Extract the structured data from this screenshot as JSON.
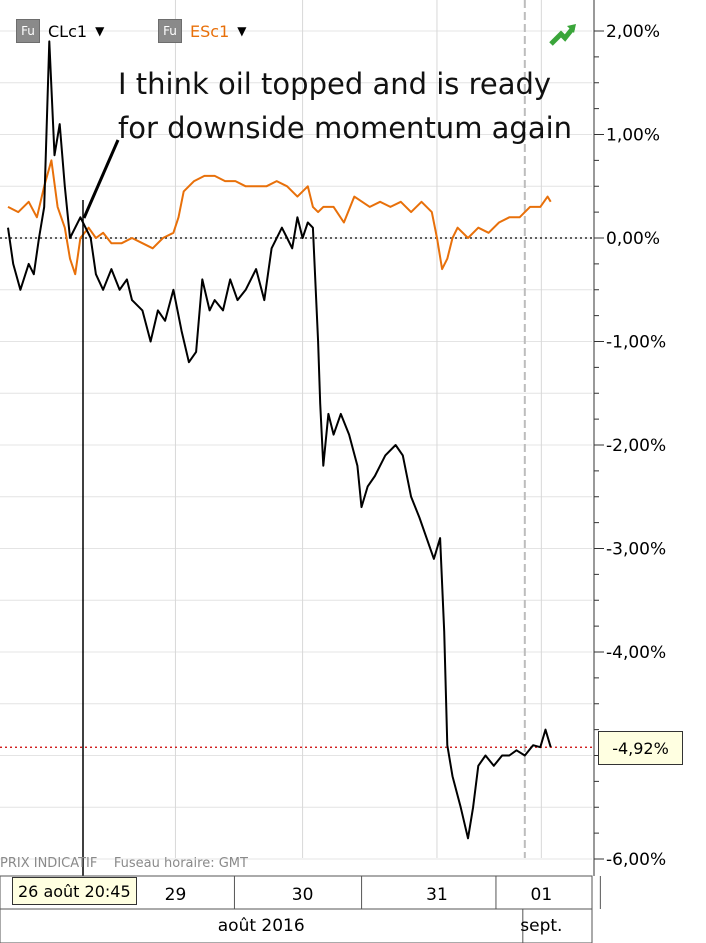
{
  "legend": [
    {
      "icon": "Fu",
      "label": "CLc1",
      "color": "#000000"
    },
    {
      "icon": "Fu",
      "label": "ESc1",
      "color": "#e8700a"
    }
  ],
  "annotation": "I think oil topped and is ready for downside momentum again",
  "footer": {
    "price_type": "PRIX INDICATIF",
    "timezone": "Fuseau horaire: GMT"
  },
  "cursor_label": "26 août 20:45",
  "last_value_label": "-4,92%",
  "colors": {
    "clc1": "#000000",
    "esc1": "#e8700a",
    "grid": "#d3d3d3",
    "zero_line": "#000000",
    "last_line": "#cc0000",
    "label_bg": "#ffffe1"
  },
  "chart_data": {
    "type": "line",
    "y_unit": "%",
    "ylim": [
      -6.2,
      2.3
    ],
    "y_ticks": [
      2,
      1,
      0,
      -1,
      -2,
      -3,
      -4,
      -6
    ],
    "y_tick_labels": [
      "2,00%",
      "1,00%",
      "0,00%",
      "-1,00%",
      "-2,00%",
      "-3,00%",
      "-4,00%",
      "-6,00%"
    ],
    "x_ticks": [
      {
        "t": 1.62,
        "label": "29"
      },
      {
        "t": 2.85,
        "label": "30"
      },
      {
        "t": 4.15,
        "label": "31"
      },
      {
        "t": 5.16,
        "label": "01"
      }
    ],
    "x_month_labels": [
      {
        "t": 2.45,
        "label": "août 2016"
      },
      {
        "t": 5.16,
        "label": "sept."
      }
    ],
    "xlim": [
      0,
      5.65
    ],
    "reference_lines": [
      {
        "y": 0,
        "style": "dotted"
      },
      {
        "y": -4.92,
        "style": "dotted-red"
      }
    ],
    "grid": true,
    "series": [
      {
        "name": "CLc1",
        "points": [
          [
            0,
            0.1
          ],
          [
            0.05,
            -0.25
          ],
          [
            0.12,
            -0.5
          ],
          [
            0.2,
            -0.25
          ],
          [
            0.25,
            -0.35
          ],
          [
            0.3,
            0.0
          ],
          [
            0.35,
            0.3
          ],
          [
            0.4,
            1.9
          ],
          [
            0.45,
            0.8
          ],
          [
            0.5,
            1.1
          ],
          [
            0.55,
            0.5
          ],
          [
            0.6,
            0.0
          ],
          [
            0.7,
            0.2
          ],
          [
            0.8,
            0.0
          ],
          [
            0.85,
            -0.35
          ],
          [
            0.92,
            -0.5
          ],
          [
            1.0,
            -0.3
          ],
          [
            1.08,
            -0.5
          ],
          [
            1.15,
            -0.4
          ],
          [
            1.2,
            -0.6
          ],
          [
            1.3,
            -0.7
          ],
          [
            1.38,
            -1.0
          ],
          [
            1.45,
            -0.7
          ],
          [
            1.52,
            -0.8
          ],
          [
            1.6,
            -0.5
          ],
          [
            1.68,
            -0.9
          ],
          [
            1.75,
            -1.2
          ],
          [
            1.82,
            -1.1
          ],
          [
            1.88,
            -0.4
          ],
          [
            1.95,
            -0.7
          ],
          [
            2.0,
            -0.6
          ],
          [
            2.08,
            -0.7
          ],
          [
            2.15,
            -0.4
          ],
          [
            2.22,
            -0.6
          ],
          [
            2.3,
            -0.5
          ],
          [
            2.4,
            -0.3
          ],
          [
            2.48,
            -0.6
          ],
          [
            2.55,
            -0.1
          ],
          [
            2.65,
            0.1
          ],
          [
            2.7,
            0.0
          ],
          [
            2.75,
            -0.1
          ],
          [
            2.8,
            0.2
          ],
          [
            2.85,
            0.0
          ],
          [
            2.9,
            0.15
          ],
          [
            2.95,
            0.1
          ],
          [
            3.0,
            -1.0
          ],
          [
            3.02,
            -1.6
          ],
          [
            3.05,
            -2.2
          ],
          [
            3.1,
            -1.7
          ],
          [
            3.15,
            -1.9
          ],
          [
            3.22,
            -1.7
          ],
          [
            3.3,
            -1.9
          ],
          [
            3.38,
            -2.2
          ],
          [
            3.42,
            -2.6
          ],
          [
            3.48,
            -2.4
          ],
          [
            3.55,
            -2.3
          ],
          [
            3.65,
            -2.1
          ],
          [
            3.75,
            -2.0
          ],
          [
            3.82,
            -2.1
          ],
          [
            3.9,
            -2.5
          ],
          [
            3.98,
            -2.7
          ],
          [
            4.05,
            -2.9
          ],
          [
            4.12,
            -3.1
          ],
          [
            4.18,
            -2.9
          ],
          [
            4.22,
            -3.8
          ],
          [
            4.25,
            -4.9
          ],
          [
            4.3,
            -5.2
          ],
          [
            4.38,
            -5.5
          ],
          [
            4.45,
            -5.8
          ],
          [
            4.5,
            -5.5
          ],
          [
            4.55,
            -5.1
          ],
          [
            4.62,
            -5.0
          ],
          [
            4.7,
            -5.1
          ],
          [
            4.78,
            -5.0
          ],
          [
            4.85,
            -5.0
          ],
          [
            4.92,
            -4.95
          ],
          [
            5.0,
            -5.0
          ],
          [
            5.08,
            -4.9
          ],
          [
            5.15,
            -4.92
          ],
          [
            5.2,
            -4.75
          ],
          [
            5.25,
            -4.92
          ]
        ]
      },
      {
        "name": "ESc1",
        "points": [
          [
            0,
            0.3
          ],
          [
            0.1,
            0.25
          ],
          [
            0.2,
            0.35
          ],
          [
            0.28,
            0.2
          ],
          [
            0.35,
            0.5
          ],
          [
            0.42,
            0.75
          ],
          [
            0.48,
            0.3
          ],
          [
            0.55,
            0.1
          ],
          [
            0.6,
            -0.2
          ],
          [
            0.65,
            -0.35
          ],
          [
            0.7,
            0.0
          ],
          [
            0.78,
            0.1
          ],
          [
            0.85,
            0.0
          ],
          [
            0.92,
            0.05
          ],
          [
            1.0,
            -0.05
          ],
          [
            1.1,
            -0.05
          ],
          [
            1.2,
            0.0
          ],
          [
            1.3,
            -0.05
          ],
          [
            1.4,
            -0.1
          ],
          [
            1.5,
            0.0
          ],
          [
            1.6,
            0.05
          ],
          [
            1.65,
            0.2
          ],
          [
            1.7,
            0.45
          ],
          [
            1.8,
            0.55
          ],
          [
            1.9,
            0.6
          ],
          [
            2.0,
            0.6
          ],
          [
            2.1,
            0.55
          ],
          [
            2.2,
            0.55
          ],
          [
            2.3,
            0.5
          ],
          [
            2.4,
            0.5
          ],
          [
            2.5,
            0.5
          ],
          [
            2.6,
            0.55
          ],
          [
            2.7,
            0.5
          ],
          [
            2.8,
            0.4
          ],
          [
            2.9,
            0.5
          ],
          [
            2.95,
            0.3
          ],
          [
            3.0,
            0.25
          ],
          [
            3.05,
            0.3
          ],
          [
            3.15,
            0.3
          ],
          [
            3.25,
            0.15
          ],
          [
            3.35,
            0.4
          ],
          [
            3.5,
            0.3
          ],
          [
            3.6,
            0.35
          ],
          [
            3.7,
            0.3
          ],
          [
            3.8,
            0.35
          ],
          [
            3.9,
            0.25
          ],
          [
            4.0,
            0.35
          ],
          [
            4.1,
            0.25
          ],
          [
            4.15,
            0.0
          ],
          [
            4.2,
            -0.3
          ],
          [
            4.25,
            -0.2
          ],
          [
            4.3,
            0.0
          ],
          [
            4.35,
            0.1
          ],
          [
            4.45,
            0.0
          ],
          [
            4.55,
            0.1
          ],
          [
            4.65,
            0.05
          ],
          [
            4.75,
            0.15
          ],
          [
            4.85,
            0.2
          ],
          [
            4.95,
            0.2
          ],
          [
            5.05,
            0.3
          ],
          [
            5.15,
            0.3
          ],
          [
            5.22,
            0.4
          ],
          [
            5.25,
            0.35
          ]
        ]
      }
    ]
  }
}
